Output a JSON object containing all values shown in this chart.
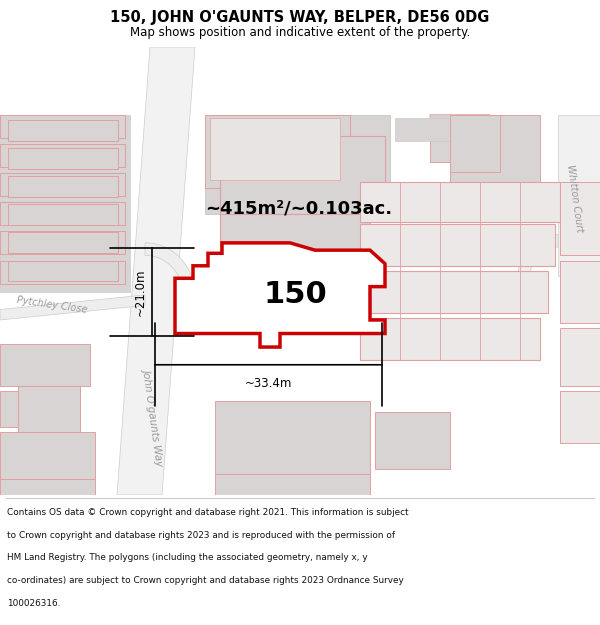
{
  "title": "150, JOHN O'GAUNTS WAY, BELPER, DE56 0DG",
  "subtitle": "Map shows position and indicative extent of the property.",
  "area_label": "~415m²/~0.103ac.",
  "number_label": "150",
  "width_label": "~33.4m",
  "height_label": "~21.0m",
  "map_bg": "#ffffff",
  "road_fill": "#f0f0f0",
  "road_edge": "#cccccc",
  "building_light_fill": "#ede8e8",
  "building_light_edge": "#e0a0a0",
  "building_gray_fill": "#d8d4d4",
  "building_gray_edge": "#cccccc",
  "highlight_fill": "#ffffff",
  "highlight_edge": "#cc0000",
  "dim_line_color": "#000000",
  "label_color": "#000000",
  "road_label_color": "#999999",
  "footer_lines": [
    "Contains OS data © Crown copyright and database right 2021. This information is subject",
    "to Crown copyright and database rights 2023 and is reproduced with the permission of",
    "HM Land Registry. The polygons (including the associated geometry, namely x, y",
    "co-ordinates) are subject to Crown copyright and database rights 2023 Ordnance Survey",
    "100026316."
  ]
}
